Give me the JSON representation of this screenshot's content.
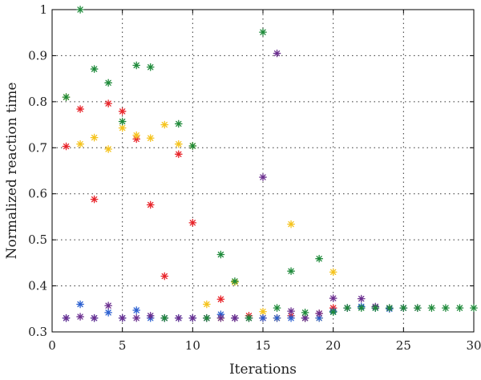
{
  "chart_data": {
    "type": "scatter",
    "title": "",
    "xlabel": "Iterations",
    "ylabel": "Normalized reaction time",
    "xlim": [
      0,
      30
    ],
    "ylim": [
      0.3,
      1.0
    ],
    "xticks": [
      0,
      5,
      10,
      15,
      20,
      25,
      30
    ],
    "yticks": [
      0.3,
      0.4,
      0.5,
      0.6,
      0.7,
      0.8,
      0.9,
      1.0
    ],
    "xtick_labels": [
      "0",
      "5",
      "10",
      "15",
      "20",
      "25",
      "30"
    ],
    "ytick_labels": [
      "0.3",
      "0.4",
      "0.5",
      "0.6",
      "0.7",
      "0.8",
      "0.9",
      "1"
    ],
    "grid": true,
    "marker": "asterisk",
    "series": [
      {
        "color": "#e8242a",
        "x": [
          1,
          2,
          3,
          4,
          5,
          6,
          7,
          8,
          9,
          10,
          11,
          12,
          13,
          14,
          15,
          16,
          17,
          18,
          19,
          20
        ],
        "y": [
          0.703,
          0.784,
          0.588,
          0.796,
          0.779,
          0.719,
          0.576,
          0.421,
          0.686,
          0.537,
          0.33,
          0.371,
          0.33,
          0.335,
          0.33,
          0.33,
          0.335,
          0.33,
          0.34,
          0.352
        ]
      },
      {
        "color": "#f5c31c",
        "x": [
          1,
          2,
          3,
          4,
          5,
          6,
          7,
          8,
          9,
          10,
          11,
          12,
          13,
          14,
          15,
          16,
          17,
          18,
          19,
          20
        ],
        "y": [
          0.81,
          0.708,
          0.722,
          0.697,
          0.743,
          0.727,
          0.721,
          0.75,
          0.708,
          0.704,
          0.36,
          0.33,
          0.408,
          0.33,
          0.344,
          0.33,
          0.534,
          0.33,
          0.33,
          0.43
        ]
      },
      {
        "color": "#2a5fd0",
        "x": [
          1,
          2,
          3,
          4,
          5,
          6,
          7,
          8,
          9,
          10,
          11,
          12,
          13,
          14,
          15,
          16,
          17,
          18,
          19,
          20,
          21,
          22,
          23,
          24,
          25
        ],
        "y": [
          0.33,
          0.36,
          0.33,
          0.342,
          0.33,
          0.347,
          0.33,
          0.33,
          0.33,
          0.33,
          0.33,
          0.338,
          0.33,
          0.33,
          0.33,
          0.33,
          0.33,
          0.33,
          0.33,
          0.345,
          0.352,
          0.355,
          0.352,
          0.35,
          0.352
        ]
      },
      {
        "color": "#6b2f8f",
        "x": [
          1,
          2,
          3,
          4,
          5,
          6,
          7,
          8,
          9,
          10,
          11,
          12,
          13,
          14,
          15,
          16,
          17,
          18,
          19,
          20,
          21,
          22,
          23,
          24,
          25,
          26
        ],
        "y": [
          0.33,
          0.333,
          0.33,
          0.357,
          0.33,
          0.33,
          0.335,
          0.33,
          0.33,
          0.33,
          0.33,
          0.33,
          0.33,
          0.33,
          0.636,
          0.905,
          0.345,
          0.33,
          0.34,
          0.373,
          0.352,
          0.372,
          0.355,
          0.352,
          0.352,
          0.352
        ]
      },
      {
        "color": "#1e8a3a",
        "x": [
          1,
          2,
          3,
          4,
          5,
          6,
          7,
          8,
          9,
          10,
          11,
          12,
          13,
          14,
          15,
          16,
          17,
          18,
          19,
          20,
          21,
          22,
          23,
          24,
          25,
          26,
          27,
          28,
          29,
          30
        ],
        "y": [
          0.81,
          1.0,
          0.871,
          0.841,
          0.757,
          0.879,
          0.875,
          0.33,
          0.752,
          0.704,
          0.33,
          0.468,
          0.41,
          0.33,
          0.951,
          0.352,
          0.432,
          0.342,
          0.459,
          0.343,
          0.352,
          0.352,
          0.352,
          0.352,
          0.352,
          0.352,
          0.352,
          0.352,
          0.352,
          0.352
        ]
      }
    ]
  }
}
